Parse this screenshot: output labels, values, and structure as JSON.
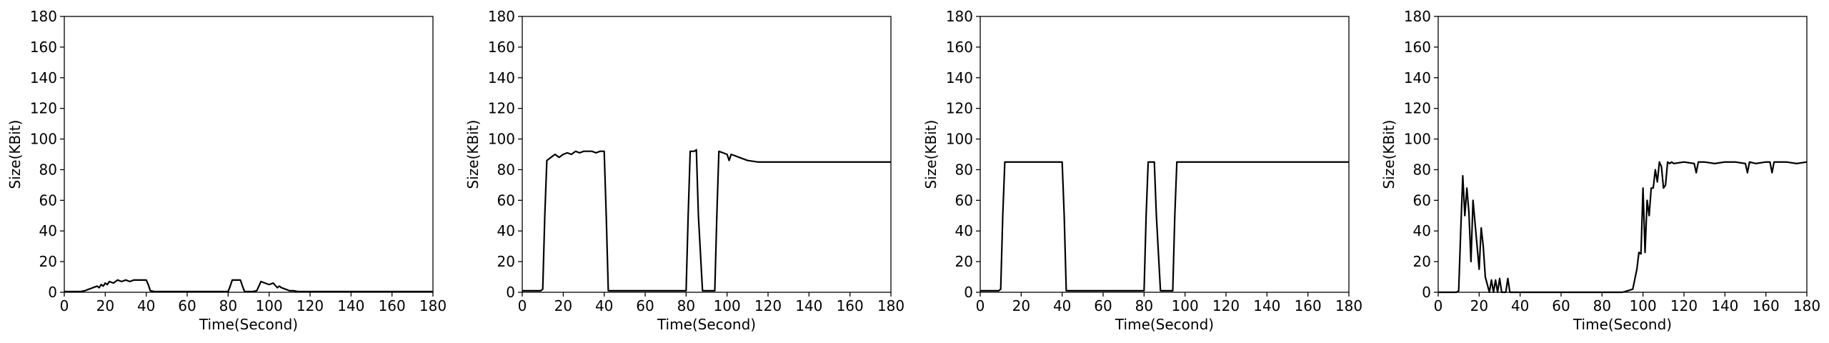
{
  "chart_data": [
    {
      "type": "line",
      "xlabel": "Time(Second)",
      "ylabel": "Size(KBit)",
      "xlim": [
        0,
        180
      ],
      "ylim": [
        0,
        180
      ],
      "xticks": [
        "0",
        "20",
        "40",
        "60",
        "80",
        "100",
        "120",
        "140",
        "160",
        "180"
      ],
      "yticks": [
        "0",
        "20",
        "40",
        "60",
        "80",
        "100",
        "120",
        "140",
        "160",
        "180"
      ],
      "grid": false,
      "series": [
        {
          "color": "#000000",
          "x": [
            0,
            8,
            10,
            12,
            14,
            16,
            17,
            18,
            19,
            20,
            21,
            22,
            24,
            26,
            28,
            30,
            32,
            34,
            36,
            38,
            40,
            41,
            42,
            44,
            50,
            60,
            70,
            80,
            81,
            82,
            84,
            86,
            87,
            88,
            90,
            92,
            94,
            95,
            96,
            98,
            100,
            102,
            104,
            105,
            106,
            108,
            110,
            112,
            114,
            120,
            130,
            140,
            150,
            160,
            170,
            180
          ],
          "y": [
            0.5,
            0.5,
            1,
            2,
            3,
            4,
            3,
            5,
            4,
            6,
            5,
            7,
            6,
            8,
            7,
            8,
            7,
            8,
            8,
            8,
            8,
            5,
            1,
            0.5,
            0.5,
            0.5,
            0.5,
            0.5,
            4,
            8,
            8,
            8,
            4,
            0.5,
            0.5,
            0.5,
            1,
            4,
            7,
            6,
            5,
            6,
            3,
            4,
            3,
            2,
            1,
            1,
            0.5,
            0.5,
            0.5,
            0.5,
            0.5,
            0.5,
            0.5,
            0.5
          ]
        }
      ]
    },
    {
      "type": "line",
      "xlabel": "Time(Second)",
      "ylabel": "Size(KBit)",
      "xlim": [
        0,
        180
      ],
      "ylim": [
        0,
        180
      ],
      "xticks": [
        "0",
        "20",
        "40",
        "60",
        "80",
        "100",
        "120",
        "140",
        "160",
        "180"
      ],
      "yticks": [
        "0",
        "20",
        "40",
        "60",
        "80",
        "100",
        "120",
        "140",
        "160",
        "180"
      ],
      "grid": false,
      "series": [
        {
          "color": "#000000",
          "x": [
            0,
            9,
            10,
            11,
            12,
            14,
            16,
            18,
            20,
            22,
            24,
            26,
            28,
            30,
            32,
            34,
            36,
            38,
            40,
            41,
            42,
            44,
            50,
            60,
            70,
            80,
            81,
            82,
            84,
            85,
            86,
            88,
            90,
            92,
            94,
            95,
            96,
            98,
            100,
            101,
            102,
            104,
            106,
            108,
            110,
            115,
            120,
            130,
            140,
            150,
            160,
            170,
            180
          ],
          "y": [
            1,
            1,
            2,
            50,
            86,
            88,
            90,
            88,
            90,
            91,
            90,
            92,
            91,
            92,
            92,
            92,
            91,
            92,
            92,
            50,
            1,
            1,
            1,
            1,
            1,
            1,
            50,
            92,
            92,
            93,
            50,
            1,
            1,
            1,
            1,
            50,
            92,
            91,
            90,
            86,
            90,
            89,
            88,
            87,
            86,
            85,
            85,
            85,
            85,
            85,
            85,
            85,
            85
          ]
        }
      ]
    },
    {
      "type": "line",
      "xlabel": "Time(Second)",
      "ylabel": "Size(KBit)",
      "xlim": [
        0,
        180
      ],
      "ylim": [
        0,
        180
      ],
      "xticks": [
        "0",
        "20",
        "40",
        "60",
        "80",
        "100",
        "120",
        "140",
        "160",
        "180"
      ],
      "yticks": [
        "0",
        "20",
        "40",
        "60",
        "80",
        "100",
        "120",
        "140",
        "160",
        "180"
      ],
      "grid": false,
      "series": [
        {
          "color": "#000000",
          "x": [
            0,
            9,
            10,
            11,
            12,
            14,
            20,
            30,
            40,
            41,
            42,
            44,
            50,
            60,
            70,
            80,
            81,
            82,
            84,
            85,
            86,
            88,
            90,
            92,
            94,
            95,
            96,
            98,
            100,
            110,
            120,
            130,
            140,
            150,
            160,
            170,
            180
          ],
          "y": [
            1,
            1,
            2,
            50,
            85,
            85,
            85,
            85,
            85,
            50,
            1,
            1,
            1,
            1,
            1,
            1,
            50,
            85,
            85,
            85,
            50,
            1,
            1,
            1,
            1,
            50,
            85,
            85,
            85,
            85,
            85,
            85,
            85,
            85,
            85,
            85,
            85
          ]
        }
      ]
    },
    {
      "type": "line",
      "xlabel": "Time(Second)",
      "ylabel": "Size(KBit)",
      "xlim": [
        0,
        180
      ],
      "ylim": [
        0,
        180
      ],
      "xticks": [
        "0",
        "20",
        "40",
        "60",
        "80",
        "100",
        "120",
        "140",
        "160",
        "180"
      ],
      "yticks": [
        "0",
        "20",
        "40",
        "60",
        "80",
        "100",
        "120",
        "140",
        "160",
        "180"
      ],
      "grid": false,
      "series": [
        {
          "color": "#000000",
          "x": [
            0,
            9,
            10,
            11,
            12,
            13,
            14,
            15,
            16,
            17,
            18,
            19,
            20,
            21,
            22,
            23,
            24,
            25,
            26,
            27,
            28,
            29,
            30,
            31,
            32,
            33,
            34,
            35,
            36,
            37,
            38,
            40,
            50,
            60,
            70,
            80,
            90,
            95,
            97,
            98,
            99,
            100,
            101,
            102,
            103,
            104,
            105,
            106,
            107,
            108,
            109,
            110,
            111,
            112,
            113,
            114,
            115,
            120,
            125,
            126,
            127,
            130,
            135,
            140,
            145,
            150,
            151,
            152,
            155,
            160,
            162,
            163,
            164,
            170,
            175,
            180
          ],
          "y": [
            0,
            0,
            1,
            40,
            76,
            50,
            68,
            52,
            20,
            60,
            45,
            30,
            15,
            42,
            30,
            10,
            5,
            0,
            8,
            0,
            8,
            0,
            9,
            0,
            0,
            0,
            9,
            0,
            0,
            0,
            0,
            0,
            0,
            0,
            0,
            0,
            0,
            2,
            15,
            26,
            25,
            68,
            26,
            60,
            50,
            68,
            68,
            80,
            72,
            85,
            82,
            68,
            70,
            85,
            84,
            85,
            84,
            85,
            84,
            78,
            85,
            85,
            84,
            85,
            85,
            84,
            78,
            85,
            84,
            85,
            85,
            78,
            85,
            85,
            84,
            85
          ]
        }
      ]
    }
  ]
}
